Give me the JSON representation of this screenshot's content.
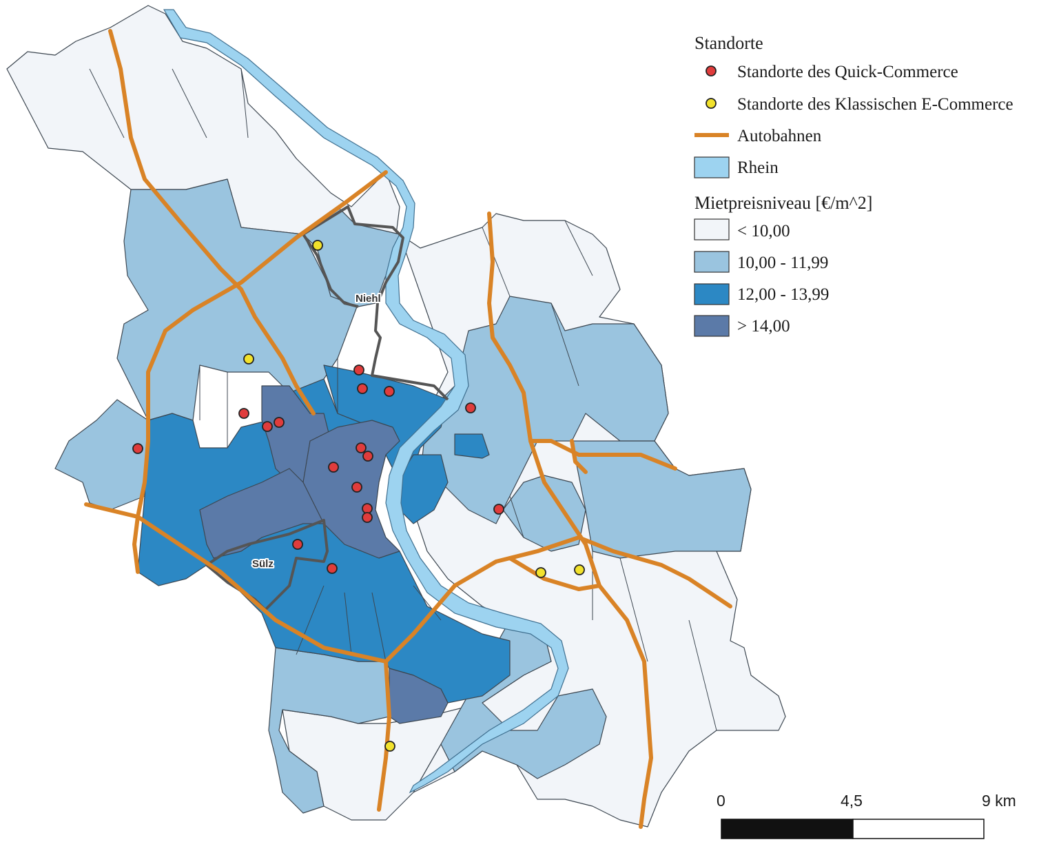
{
  "legend": {
    "locations_title": "Standorte",
    "quick_commerce": "Standorte des Quick-Commerce",
    "classic_ecommerce": "Standorte des Klassischen E-Commerce",
    "highways": "Autobahnen",
    "river": "Rhein",
    "rent_title": "Mietpreisniveau [€/m^2]",
    "classes": [
      "< 10,00",
      "10,00 - 11,99",
      "12,00 - 13,99",
      "> 14,00"
    ]
  },
  "colors": {
    "class_lt10": "#f2f5f9",
    "class_10_12": "#9ac4df",
    "class_12_14": "#2c88c4",
    "class_gt14": "#5b7aa8",
    "river": "#9dd3f0",
    "highway": "#d98326",
    "quick_commerce_dot": "#e03c3c",
    "classic_dot": "#f2e22c",
    "boundary": "#555555"
  },
  "place_labels": {
    "niehl": "Niehl",
    "suelz": "Sülz"
  },
  "scale_bar": {
    "label_0": "0",
    "label_mid": "4,5",
    "label_end": "9 km"
  },
  "icons": {
    "quick_commerce": "red-circle",
    "classic": "yellow-circle",
    "highway": "orange-line",
    "river": "light-blue-box"
  }
}
